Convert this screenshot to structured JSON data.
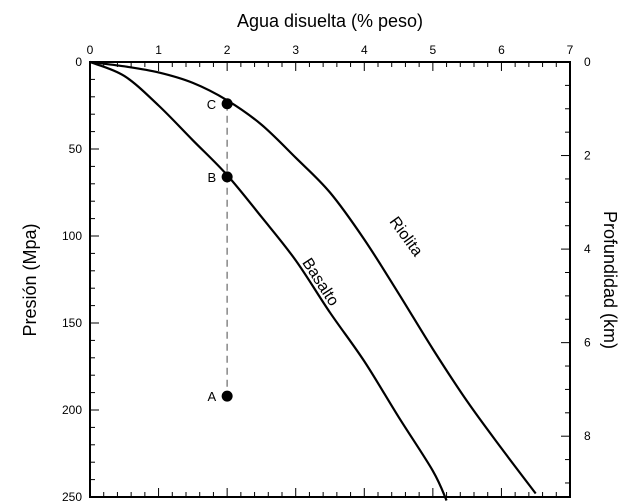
{
  "chart_data": {
    "type": "line",
    "title": "",
    "xlabel": "Agua disuelta (% peso)",
    "ylabel": "Presión (Mpa)",
    "y2label": "Profundidad (km)",
    "x_axis_position": "top",
    "y_inverted": true,
    "xlim": [
      0,
      7
    ],
    "ylim": [
      0,
      250
    ],
    "y2lim": [
      0,
      9.3
    ],
    "grid": false,
    "x_ticks": [
      "0",
      "1",
      "2",
      "3",
      "4",
      "5",
      "6",
      "7"
    ],
    "y_ticks": [
      "0",
      "50",
      "100",
      "150",
      "200",
      "250"
    ],
    "y2_ticks": [
      "0",
      "2",
      "4",
      "6",
      "8"
    ],
    "series": [
      {
        "name": "Riolita",
        "x": [
          0,
          0.5,
          1.0,
          1.5,
          2.0,
          2.5,
          3.0,
          3.5,
          4.0,
          4.5,
          5.0,
          5.5,
          6.0,
          6.5
        ],
        "y": [
          0,
          2.5,
          6,
          12,
          22,
          36,
          55,
          75,
          102,
          133,
          165,
          195,
          222,
          248
        ]
      },
      {
        "name": "Basalto",
        "x": [
          0,
          0.5,
          1.0,
          1.5,
          2.0,
          2.5,
          3.0,
          3.5,
          4.0,
          4.5,
          5.0,
          5.2
        ],
        "y": [
          0,
          8,
          25,
          45,
          65,
          89,
          114,
          144,
          172,
          204,
          235,
          252
        ]
      }
    ],
    "points": [
      {
        "label": "C",
        "x": 2.0,
        "y": 24
      },
      {
        "label": "B",
        "x": 2.0,
        "y": 66
      },
      {
        "label": "A",
        "x": 2.0,
        "y": 192
      }
    ]
  }
}
